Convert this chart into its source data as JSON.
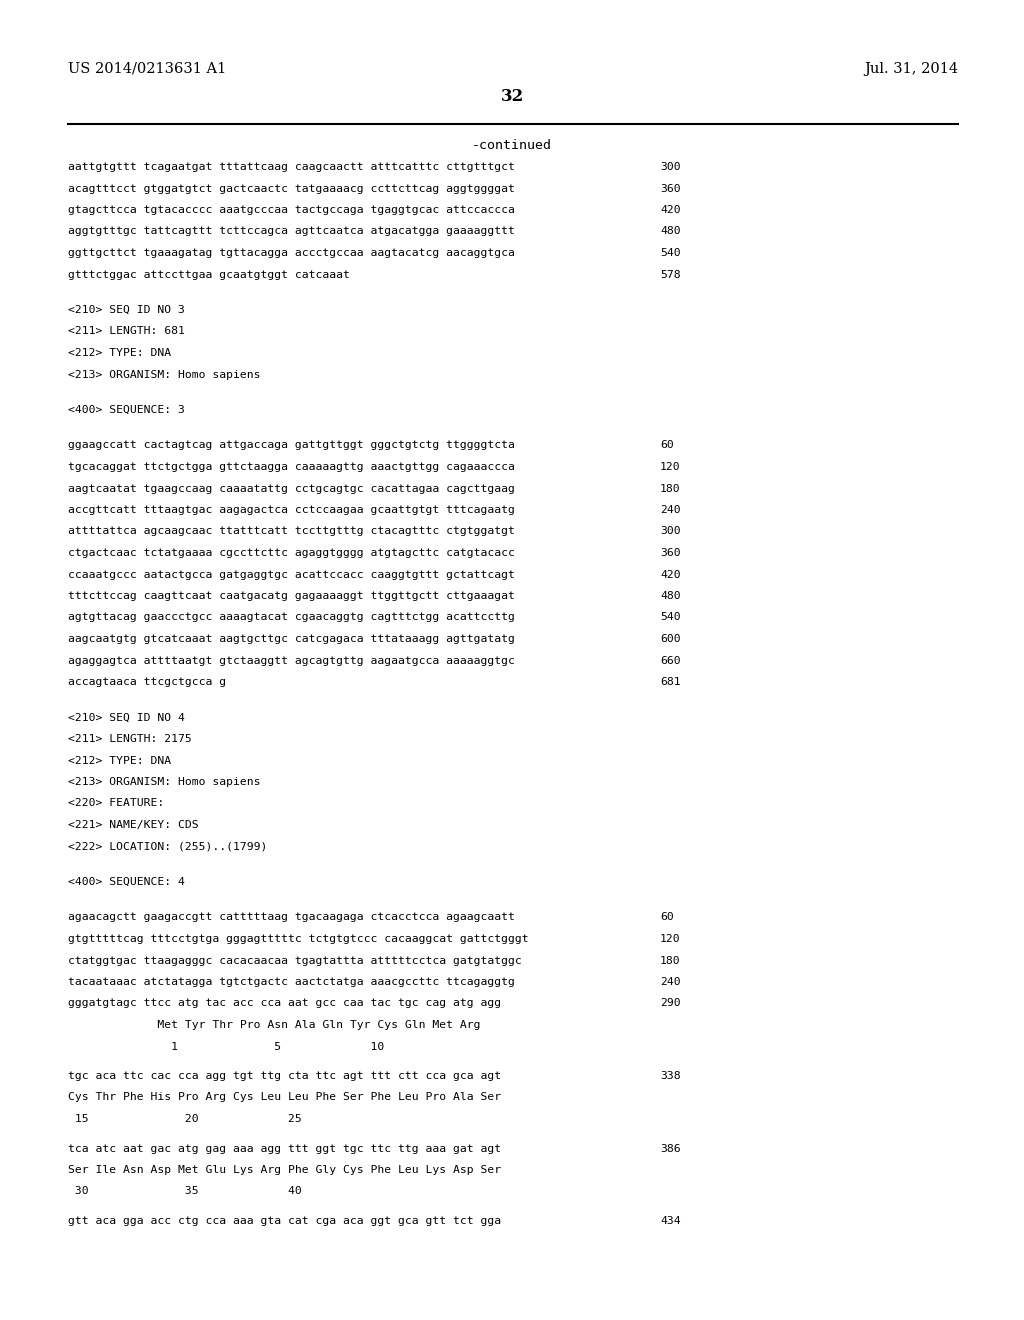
{
  "header_left": "US 2014/0213631 A1",
  "header_right": "Jul. 31, 2014",
  "page_number": "32",
  "continued_label": "-continued",
  "background_color": "#ffffff",
  "text_color": "#000000",
  "lines": [
    {
      "text": "aattgtgttt tcagaatgat tttattcaag caagcaactt atttcatttc cttgtttgct",
      "num": "300",
      "type": "seq"
    },
    {
      "text": "acagtttcct gtggatgtct gactcaactc tatgaaaacg ccttcttcag aggtggggat",
      "num": "360",
      "type": "seq"
    },
    {
      "text": "gtagcttcca tgtacacccc aaatgcccaa tactgccaga tgaggtgcac attccaccca",
      "num": "420",
      "type": "seq"
    },
    {
      "text": "aggtgtttgc tattcagttt tcttccagca agttcaatca atgacatgga gaaaaggttt",
      "num": "480",
      "type": "seq"
    },
    {
      "text": "ggttgcttct tgaaagatag tgttacagga accctgccaa aagtacatcg aacaggtgca",
      "num": "540",
      "type": "seq"
    },
    {
      "text": "gtttctggac attccttgaa gcaatgtggt catcaaat",
      "num": "578",
      "type": "seq"
    },
    {
      "text": "",
      "type": "blank"
    },
    {
      "text": "<210> SEQ ID NO 3",
      "type": "meta"
    },
    {
      "text": "<211> LENGTH: 681",
      "type": "meta"
    },
    {
      "text": "<212> TYPE: DNA",
      "type": "meta"
    },
    {
      "text": "<213> ORGANISM: Homo sapiens",
      "type": "meta"
    },
    {
      "text": "",
      "type": "blank"
    },
    {
      "text": "<400> SEQUENCE: 3",
      "type": "meta"
    },
    {
      "text": "",
      "type": "blank"
    },
    {
      "text": "ggaagccatt cactagtcag attgaccaga gattgttggt gggctgtctg ttggggtcta",
      "num": "60",
      "type": "seq"
    },
    {
      "text": "tgcacaggat ttctgctgga gttctaagga caaaaagttg aaactgttgg cagaaaccca",
      "num": "120",
      "type": "seq"
    },
    {
      "text": "aagtcaatat tgaagccaag caaaatattg cctgcagtgc cacattagaa cagcttgaag",
      "num": "180",
      "type": "seq"
    },
    {
      "text": "accgttcatt tttaagtgac aagagactca cctccaagaa gcaattgtgt tttcagaatg",
      "num": "240",
      "type": "seq"
    },
    {
      "text": "attttattca agcaagcaac ttatttcatt tccttgtttg ctacagtttc ctgtggatgt",
      "num": "300",
      "type": "seq"
    },
    {
      "text": "ctgactcaac tctatgaaaa cgccttcttc agaggtgggg atgtagcttc catgtacacc",
      "num": "360",
      "type": "seq"
    },
    {
      "text": "ccaaatgccc aatactgcca gatgaggtgc acattccacc caaggtgttt gctattcagt",
      "num": "420",
      "type": "seq"
    },
    {
      "text": "tttcttccag caagttcaat caatgacatg gagaaaaggt ttggttgctt cttgaaagat",
      "num": "480",
      "type": "seq"
    },
    {
      "text": "agtgttacag gaaccctgcc aaaagtacat cgaacaggtg cagtttctgg acattccttg",
      "num": "540",
      "type": "seq"
    },
    {
      "text": "aagcaatgtg gtcatcaaat aagtgcttgc catcgagaca tttataaagg agttgatatg",
      "num": "600",
      "type": "seq"
    },
    {
      "text": "agaggagtca attttaatgt gtctaaggtt agcagtgttg aagaatgcca aaaaaggtgc",
      "num": "660",
      "type": "seq"
    },
    {
      "text": "accagtaaca ttcgctgcca g",
      "num": "681",
      "type": "seq"
    },
    {
      "text": "",
      "type": "blank"
    },
    {
      "text": "<210> SEQ ID NO 4",
      "type": "meta"
    },
    {
      "text": "<211> LENGTH: 2175",
      "type": "meta"
    },
    {
      "text": "<212> TYPE: DNA",
      "type": "meta"
    },
    {
      "text": "<213> ORGANISM: Homo sapiens",
      "type": "meta"
    },
    {
      "text": "<220> FEATURE:",
      "type": "meta"
    },
    {
      "text": "<221> NAME/KEY: CDS",
      "type": "meta"
    },
    {
      "text": "<222> LOCATION: (255)..(1799)",
      "type": "meta"
    },
    {
      "text": "",
      "type": "blank"
    },
    {
      "text": "<400> SEQUENCE: 4",
      "type": "meta"
    },
    {
      "text": "",
      "type": "blank"
    },
    {
      "text": "agaacagctt gaagaccgtt catttttaag tgacaagaga ctcacctcca agaagcaatt",
      "num": "60",
      "type": "seq"
    },
    {
      "text": "gtgtttttcag tttcctgtga gggagtttttc tctgtgtccc cacaaggcat gattctgggt",
      "num": "120",
      "type": "seq"
    },
    {
      "text": "ctatggtgac ttaagagggc cacacaacaa tgagtattta atttttcctca gatgtatggc",
      "num": "180",
      "type": "seq"
    },
    {
      "text": "tacaataaac atctatagga tgtctgactc aactctatga aaacgccttc ttcagaggtg",
      "num": "240",
      "type": "seq"
    },
    {
      "text": "gggatgtagc ttcc atg tac acc cca aat gcc caa tac tgc cag atg agg",
      "num": "290",
      "type": "seq_aa"
    },
    {
      "text": "             Met Tyr Thr Pro Asn Ala Gln Tyr Cys Gln Met Arg",
      "type": "aa_label"
    },
    {
      "text": "               1              5             10",
      "type": "aa_num"
    },
    {
      "text": "",
      "type": "blank_small"
    },
    {
      "text": "tgc aca ttc cac cca agg tgt ttg cta ttc agt ttt ctt cca gca agt",
      "num": "338",
      "type": "seq_aa"
    },
    {
      "text": "Cys Thr Phe His Pro Arg Cys Leu Leu Phe Ser Phe Leu Pro Ala Ser",
      "type": "aa_label"
    },
    {
      "text": " 15              20             25",
      "type": "aa_num"
    },
    {
      "text": "",
      "type": "blank_small"
    },
    {
      "text": "tca atc aat gac atg gag aaa agg ttt ggt tgc ttc ttg aaa gat agt",
      "num": "386",
      "type": "seq_aa"
    },
    {
      "text": "Ser Ile Asn Asp Met Glu Lys Arg Phe Gly Cys Phe Leu Lys Asp Ser",
      "type": "aa_label"
    },
    {
      "text": " 30              35             40",
      "type": "aa_num"
    },
    {
      "text": "",
      "type": "blank_small"
    },
    {
      "text": "gtt aca gga acc ctg cca aaa gta cat cga aca ggt gca gtt tct gga",
      "num": "434",
      "type": "seq_aa"
    }
  ]
}
